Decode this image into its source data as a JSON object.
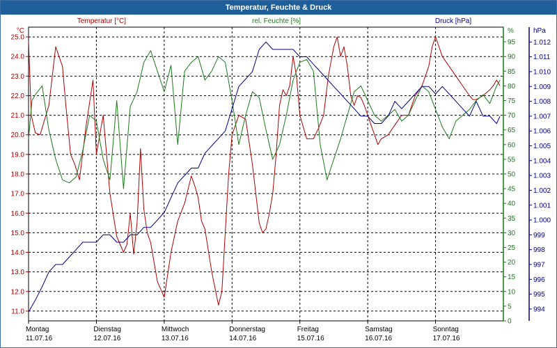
{
  "window": {
    "title": "Temperatur, Feuchte & Druck"
  },
  "colors": {
    "temperature": "#b00000",
    "humidity": "#1a7a1a",
    "pressure": "#00008b",
    "grid": "#000000"
  },
  "chart_data": {
    "type": "line",
    "title": "Temperatur, Feuchte & Druck",
    "x_ticks": [
      {
        "day": "Montag",
        "date": "11.07.16"
      },
      {
        "day": "Dienstag",
        "date": "12.07.16"
      },
      {
        "day": "Mittwoch",
        "date": "13.07.16"
      },
      {
        "day": "Donnerstag",
        "date": "14.07.16"
      },
      {
        "day": "Freitag",
        "date": "15.07.16"
      },
      {
        "day": "Samstag",
        "date": "16.07.16"
      },
      {
        "day": "Sonntag",
        "date": "17.07.16"
      }
    ],
    "xlim_days": [
      0,
      7
    ],
    "axes": {
      "temperature": {
        "label": "Temperatur [°C]",
        "unit": "°C",
        "ylim": [
          10.5,
          25.5
        ],
        "ticks": [
          "25.0",
          "24.0",
          "23.0",
          "22.0",
          "21.0",
          "20.0",
          "19.0",
          "18.0",
          "17.0",
          "16.0",
          "15.0",
          "14.0",
          "13.0",
          "12.0",
          "11.0"
        ]
      },
      "humidity": {
        "label": "rel. Feuchte [%]",
        "unit": "%",
        "ylim": [
          0,
          100
        ],
        "ticks": [
          "95",
          "90",
          "85",
          "80",
          "75",
          "70",
          "65",
          "60",
          "55",
          "50",
          "45",
          "40",
          "35",
          "30",
          "25",
          "20",
          "15",
          "10",
          "5",
          "0"
        ]
      },
      "pressure": {
        "label": "Druck [hPa]",
        "unit": "hPa",
        "ylim": [
          993.2,
          1013.0
        ],
        "ticks": [
          "1.012",
          "1.011",
          "1.010",
          "1.009",
          "1.008",
          "1.007",
          "1.006",
          "1.005",
          "1.004",
          "1.003",
          "1.002",
          "1.001",
          "1.000",
          "999",
          "998",
          "997",
          "996",
          "995",
          "994"
        ]
      }
    },
    "series": [
      {
        "name": "Temperatur",
        "axis": "temperature",
        "x": [
          0,
          0.04,
          0.1,
          0.17,
          0.3,
          0.4,
          0.5,
          0.55,
          0.62,
          0.68,
          0.75,
          0.85,
          0.95,
          1.0,
          1.1,
          1.2,
          1.3,
          1.4,
          1.45,
          1.5,
          1.55,
          1.6,
          1.65,
          1.7,
          1.75,
          1.8,
          1.9,
          2.0,
          2.1,
          2.2,
          2.3,
          2.4,
          2.45,
          2.5,
          2.55,
          2.6,
          2.7,
          2.8,
          2.85,
          2.9,
          2.95,
          3.0,
          3.1,
          3.2,
          3.3,
          3.35,
          3.4,
          3.45,
          3.5,
          3.55,
          3.6,
          3.65,
          3.7,
          3.75,
          3.8,
          3.85,
          3.9,
          3.95,
          4.0,
          4.1,
          4.2,
          4.27,
          4.35,
          4.42,
          4.5,
          4.55,
          4.6,
          4.65,
          4.7,
          4.75,
          4.8,
          4.85,
          4.9,
          4.95,
          5.0,
          5.05,
          5.1,
          5.15,
          5.2,
          5.3,
          5.4,
          5.5,
          5.6,
          5.7,
          5.8,
          5.9,
          5.95,
          6.0,
          6.1,
          6.2,
          6.3,
          6.4,
          6.5,
          6.55,
          6.6,
          6.7,
          6.8,
          6.85,
          6.9,
          6.95
        ],
        "y": [
          24.8,
          21.0,
          20.1,
          20.0,
          21.5,
          24.5,
          23.5,
          21.5,
          19.0,
          18.5,
          17.7,
          20.5,
          22.8,
          19.0,
          21.0,
          17.0,
          14.8,
          14.0,
          14.4,
          16.0,
          13.9,
          15.5,
          19.3,
          16.2,
          15.0,
          14.5,
          12.5,
          11.7,
          14.0,
          15.6,
          16.5,
          17.9,
          17.4,
          16.8,
          15.6,
          15.2,
          13.0,
          11.3,
          12.0,
          15.0,
          18.0,
          20.0,
          21.0,
          20.8,
          18.5,
          17.0,
          15.5,
          15.0,
          15.2,
          16.0,
          17.0,
          19.0,
          21.5,
          22.3,
          22.0,
          22.5,
          24.0,
          23.0,
          21.0,
          19.8,
          19.8,
          20.3,
          21.0,
          23.0,
          24.5,
          25.0,
          24.0,
          24.5,
          23.5,
          22.0,
          21.5,
          22.0,
          21.9,
          21.5,
          21.0,
          20.5,
          20.0,
          19.5,
          19.8,
          20.0,
          20.5,
          21.0,
          21.0,
          22.0,
          22.5,
          23.5,
          24.5,
          25.0,
          24.0,
          23.5,
          23.0,
          22.5,
          22.0,
          21.8,
          21.8,
          22.0,
          22.3,
          22.5,
          22.8,
          22.5
        ]
      },
      {
        "name": "rel. Feuchte",
        "axis": "humidity",
        "x": [
          0,
          0.05,
          0.1,
          0.2,
          0.3,
          0.4,
          0.5,
          0.6,
          0.7,
          0.8,
          0.9,
          1.0,
          1.1,
          1.2,
          1.3,
          1.4,
          1.5,
          1.6,
          1.7,
          1.8,
          1.9,
          2.0,
          2.1,
          2.2,
          2.3,
          2.4,
          2.5,
          2.6,
          2.7,
          2.8,
          2.9,
          3.0,
          3.1,
          3.2,
          3.3,
          3.4,
          3.5,
          3.6,
          3.7,
          3.8,
          3.9,
          4.0,
          4.1,
          4.2,
          4.3,
          4.4,
          4.5,
          4.6,
          4.7,
          4.8,
          4.9,
          5.0,
          5.1,
          5.2,
          5.3,
          5.4,
          5.5,
          5.6,
          5.7,
          5.8,
          5.9,
          6.0,
          6.1,
          6.2,
          6.3,
          6.4,
          6.5,
          6.6,
          6.7,
          6.8,
          6.9,
          6.95
        ],
        "y": [
          62,
          75,
          77,
          80,
          65,
          55,
          48,
          47,
          49,
          58,
          70,
          68,
          55,
          48,
          75,
          45,
          73,
          78,
          88,
          92,
          85,
          78,
          87,
          60,
          85,
          88,
          90,
          82,
          85,
          90,
          88,
          75,
          60,
          70,
          78,
          76,
          65,
          55,
          60,
          70,
          82,
          88,
          89,
          85,
          60,
          48,
          55,
          62,
          70,
          78,
          80,
          75,
          70,
          68,
          70,
          72,
          68,
          70,
          75,
          80,
          78,
          72,
          66,
          62,
          68,
          70,
          72,
          75,
          77,
          74,
          80,
          82
        ]
      },
      {
        "name": "Druck",
        "axis": "pressure",
        "x": [
          0,
          0.1,
          0.2,
          0.3,
          0.4,
          0.5,
          0.6,
          0.7,
          0.8,
          0.9,
          1.0,
          1.1,
          1.2,
          1.3,
          1.4,
          1.5,
          1.6,
          1.7,
          1.8,
          1.9,
          2.0,
          2.1,
          2.2,
          2.3,
          2.4,
          2.5,
          2.6,
          2.7,
          2.8,
          2.9,
          3.0,
          3.1,
          3.2,
          3.3,
          3.4,
          3.5,
          3.6,
          3.7,
          3.8,
          3.9,
          4.0,
          4.1,
          4.2,
          4.3,
          4.4,
          4.5,
          4.6,
          4.7,
          4.8,
          4.9,
          5.0,
          5.1,
          5.2,
          5.3,
          5.4,
          5.5,
          5.6,
          5.7,
          5.8,
          5.9,
          6.0,
          6.1,
          6.2,
          6.3,
          6.4,
          6.5,
          6.6,
          6.7,
          6.8,
          6.9,
          6.95
        ],
        "y": [
          993.8,
          994.6,
          995.5,
          996.5,
          997.0,
          997.0,
          997.5,
          998.0,
          998.5,
          998.5,
          998.5,
          999.0,
          999.0,
          998.5,
          998.5,
          999.0,
          999.0,
          999.5,
          999.5,
          1000.0,
          1000.5,
          1001.5,
          1002.5,
          1003.0,
          1003.5,
          1003.5,
          1004.5,
          1005.0,
          1005.5,
          1006.0,
          1007.5,
          1009.0,
          1009.5,
          1010.0,
          1011.5,
          1012.0,
          1011.5,
          1011.5,
          1011.5,
          1011.5,
          1011.0,
          1011.0,
          1010.5,
          1010.0,
          1009.5,
          1009.0,
          1008.5,
          1008.0,
          1007.5,
          1007.0,
          1007.0,
          1006.5,
          1006.5,
          1007.0,
          1008.0,
          1007.5,
          1008.0,
          1008.5,
          1009.0,
          1009.0,
          1008.5,
          1009.0,
          1008.5,
          1008.0,
          1007.5,
          1007.0,
          1008.0,
          1007.0,
          1007.0,
          1006.5,
          1007.0
        ]
      }
    ]
  }
}
